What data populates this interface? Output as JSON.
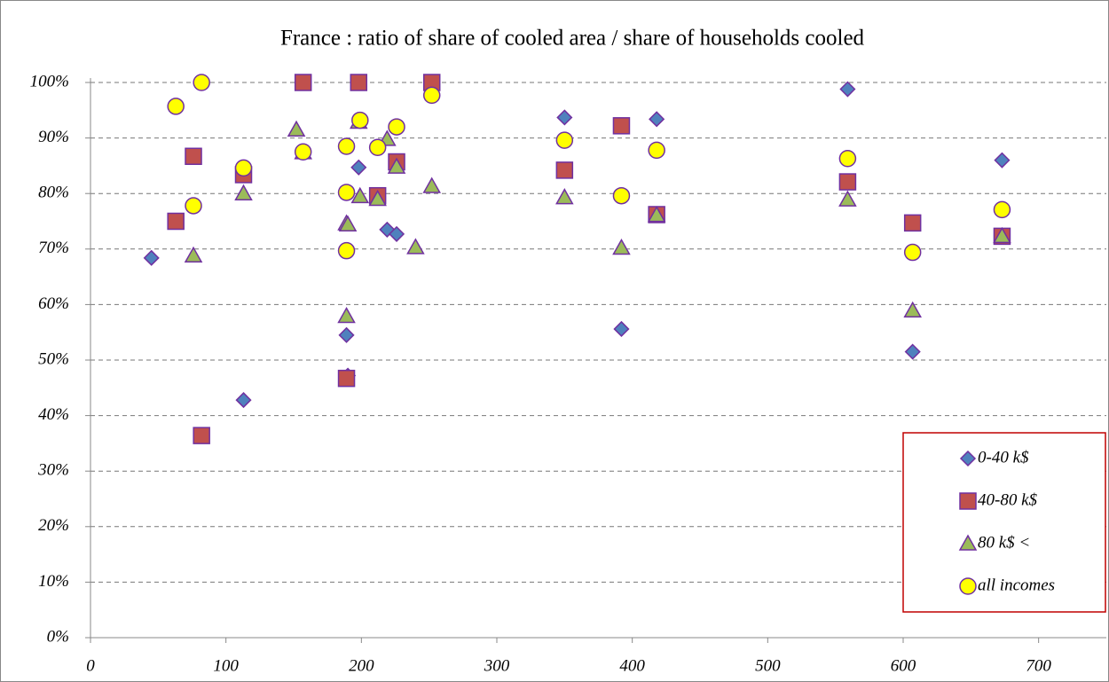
{
  "chart_data": {
    "type": "scatter",
    "title": "France : ratio of share of cooled area / share of households cooled",
    "xlim": [
      0,
      750
    ],
    "xticks": [
      0,
      100,
      200,
      300,
      400,
      500,
      600,
      700
    ],
    "ylim": [
      0,
      100
    ],
    "yticks": [
      {
        "value": 0,
        "label": "0%"
      },
      {
        "value": 10,
        "label": "10%"
      },
      {
        "value": 20,
        "label": "20%"
      },
      {
        "value": 30,
        "label": "30%"
      },
      {
        "value": 40,
        "label": "40%"
      },
      {
        "value": 50,
        "label": "50%"
      },
      {
        "value": 60,
        "label": "60%"
      },
      {
        "value": 70,
        "label": "70%"
      },
      {
        "value": 80,
        "label": "80%"
      },
      {
        "value": 90,
        "label": "90%"
      },
      {
        "value": 100,
        "label": "100%"
      }
    ],
    "grid": true,
    "legend": "lower right",
    "series": [
      {
        "name": "0-40 k$",
        "color": "#4f81bd",
        "marker": "diamond",
        "x": [
          45,
          113,
          189,
          190,
          198,
          219,
          226,
          350,
          392,
          418,
          559,
          607,
          673
        ],
        "values": [
          68.4,
          42.8,
          54.5,
          47.2,
          84.7,
          73.5,
          72.7,
          93.7,
          55.6,
          93.4,
          98.8,
          51.5,
          86.0
        ]
      },
      {
        "name": "40-80 k$",
        "color": "#c0504d",
        "marker": "square",
        "x": [
          63,
          76,
          82,
          113,
          157,
          189,
          198,
          212,
          226,
          252,
          350,
          392,
          418,
          559,
          607,
          673
        ],
        "values": [
          75,
          86.7,
          36.4,
          83.4,
          100,
          46.7,
          100,
          79.6,
          85.7,
          100,
          84.2,
          92.2,
          76.2,
          82.1,
          74.7,
          72.3
        ]
      },
      {
        "name": "80 k$ <",
        "color": "#9bbb59",
        "marker": "triangle",
        "x": [
          76,
          113,
          152,
          157,
          189,
          190,
          189,
          198,
          199,
          212,
          219,
          226,
          240,
          252,
          350,
          392,
          418,
          559,
          607,
          673
        ],
        "values": [
          68.8,
          80,
          91.5,
          87.4,
          74.6,
          74.4,
          57.9,
          92.9,
          79.5,
          79,
          89.8,
          84.8,
          70.3,
          81.3,
          79.3,
          70.2,
          76.1,
          78.9,
          58.9,
          72.3
        ]
      },
      {
        "name": "all incomes",
        "color": "#ffff00",
        "marker": "circle",
        "x": [
          63,
          82,
          76,
          113,
          157,
          189,
          189,
          189,
          199,
          212,
          226,
          252,
          350,
          392,
          418,
          559,
          607,
          673
        ],
        "values": [
          95.7,
          100,
          77.8,
          84.6,
          87.5,
          88.5,
          80.2,
          69.7,
          93.2,
          88.3,
          92,
          97.7,
          89.6,
          79.6,
          87.8,
          86.3,
          69.4,
          77.1
        ]
      }
    ]
  }
}
